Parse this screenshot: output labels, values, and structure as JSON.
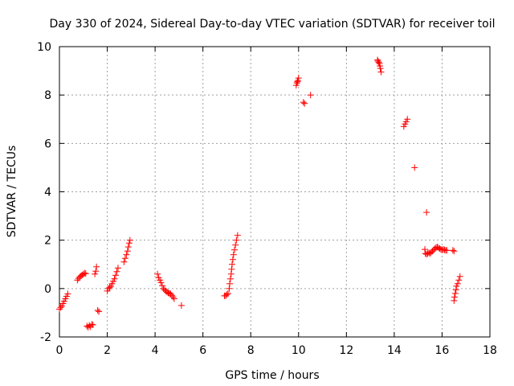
{
  "chart_data": {
    "type": "scatter",
    "title": "Day 330 of 2024, Sidereal Day-to-day VTEC variation (SDTVAR) for receiver toil",
    "xlabel": "GPS time / hours",
    "ylabel": "SDTVAR / TECUs",
    "xlim": [
      0,
      18
    ],
    "ylim": [
      -2,
      10
    ],
    "xticks": [
      0,
      2,
      4,
      6,
      8,
      10,
      12,
      14,
      16,
      18
    ],
    "yticks": [
      -2,
      0,
      2,
      4,
      6,
      8,
      10
    ],
    "xtick_labels": [
      "0",
      "2",
      "4",
      "6",
      "8",
      "10",
      "12",
      "14",
      "16",
      "18"
    ],
    "ytick_labels": [
      "-2",
      "0",
      "2",
      "4",
      "6",
      "8",
      "10"
    ],
    "grid": true,
    "marker": "+",
    "series": [
      {
        "name": "SDTVAR",
        "color": "#ff0000",
        "points": [
          [
            0.0,
            -0.85
          ],
          [
            0.05,
            -0.78
          ],
          [
            0.1,
            -0.72
          ],
          [
            0.15,
            -0.62
          ],
          [
            0.2,
            -0.52
          ],
          [
            0.25,
            -0.42
          ],
          [
            0.3,
            -0.32
          ],
          [
            0.35,
            -0.22
          ],
          [
            0.75,
            0.35
          ],
          [
            0.8,
            0.42
          ],
          [
            0.85,
            0.48
          ],
          [
            0.9,
            0.52
          ],
          [
            0.95,
            0.56
          ],
          [
            1.0,
            0.6
          ],
          [
            1.05,
            0.64
          ],
          [
            1.1,
            0.62
          ],
          [
            1.15,
            -1.55
          ],
          [
            1.2,
            -1.6
          ],
          [
            1.25,
            -1.52
          ],
          [
            1.3,
            -1.58
          ],
          [
            1.35,
            -1.48
          ],
          [
            1.4,
            -1.5
          ],
          [
            1.48,
            0.6
          ],
          [
            1.52,
            0.72
          ],
          [
            1.55,
            0.9
          ],
          [
            1.6,
            -0.9
          ],
          [
            1.65,
            -0.95
          ],
          [
            2.0,
            -0.1
          ],
          [
            2.05,
            0.0
          ],
          [
            2.1,
            0.05
          ],
          [
            2.15,
            0.1
          ],
          [
            2.2,
            0.2
          ],
          [
            2.25,
            0.3
          ],
          [
            2.3,
            0.4
          ],
          [
            2.35,
            0.55
          ],
          [
            2.4,
            0.7
          ],
          [
            2.45,
            0.85
          ],
          [
            2.7,
            1.1
          ],
          [
            2.75,
            1.25
          ],
          [
            2.8,
            1.4
          ],
          [
            2.85,
            1.55
          ],
          [
            2.88,
            1.72
          ],
          [
            2.92,
            1.88
          ],
          [
            2.95,
            2.0
          ],
          [
            4.1,
            0.6
          ],
          [
            4.15,
            0.45
          ],
          [
            4.2,
            0.35
          ],
          [
            4.25,
            0.25
          ],
          [
            4.3,
            0.12
          ],
          [
            4.35,
            0.0
          ],
          [
            4.4,
            -0.05
          ],
          [
            4.45,
            -0.1
          ],
          [
            4.5,
            -0.15
          ],
          [
            4.55,
            -0.18
          ],
          [
            4.6,
            -0.2
          ],
          [
            4.65,
            -0.22
          ],
          [
            4.7,
            -0.28
          ],
          [
            4.75,
            -0.35
          ],
          [
            4.8,
            -0.42
          ],
          [
            5.1,
            -0.7
          ],
          [
            6.9,
            -0.3
          ],
          [
            6.95,
            -0.3
          ],
          [
            7.0,
            -0.25
          ],
          [
            7.05,
            -0.2
          ],
          [
            7.1,
            0.0
          ],
          [
            7.12,
            0.2
          ],
          [
            7.15,
            0.4
          ],
          [
            7.18,
            0.6
          ],
          [
            7.2,
            0.8
          ],
          [
            7.22,
            1.0
          ],
          [
            7.25,
            1.2
          ],
          [
            7.28,
            1.4
          ],
          [
            7.32,
            1.6
          ],
          [
            7.36,
            1.8
          ],
          [
            7.4,
            2.0
          ],
          [
            7.45,
            2.2
          ],
          [
            9.9,
            8.4
          ],
          [
            9.93,
            8.5
          ],
          [
            9.95,
            8.55
          ],
          [
            9.97,
            8.6
          ],
          [
            10.0,
            8.7
          ],
          [
            10.2,
            7.7
          ],
          [
            10.25,
            7.65
          ],
          [
            10.5,
            8.0
          ],
          [
            13.3,
            9.45
          ],
          [
            13.32,
            9.4
          ],
          [
            13.35,
            9.35
          ],
          [
            13.38,
            9.3
          ],
          [
            13.4,
            9.2
          ],
          [
            13.42,
            9.1
          ],
          [
            13.45,
            8.95
          ],
          [
            14.4,
            6.7
          ],
          [
            14.45,
            6.8
          ],
          [
            14.5,
            6.9
          ],
          [
            14.55,
            7.0
          ],
          [
            14.85,
            5.0
          ],
          [
            15.35,
            3.15
          ],
          [
            15.28,
            1.62
          ],
          [
            15.3,
            1.45
          ],
          [
            15.35,
            1.42
          ],
          [
            15.4,
            1.45
          ],
          [
            15.45,
            1.48
          ],
          [
            15.5,
            1.45
          ],
          [
            15.55,
            1.5
          ],
          [
            15.6,
            1.55
          ],
          [
            15.65,
            1.6
          ],
          [
            15.7,
            1.65
          ],
          [
            15.75,
            1.7
          ],
          [
            15.8,
            1.72
          ],
          [
            15.85,
            1.68
          ],
          [
            15.9,
            1.65
          ],
          [
            15.95,
            1.62
          ],
          [
            16.0,
            1.6
          ],
          [
            16.05,
            1.62
          ],
          [
            16.1,
            1.6
          ],
          [
            16.15,
            1.58
          ],
          [
            16.2,
            1.58
          ],
          [
            16.45,
            1.58
          ],
          [
            16.5,
            1.55
          ],
          [
            16.5,
            -0.5
          ],
          [
            16.52,
            -0.35
          ],
          [
            16.55,
            -0.2
          ],
          [
            16.58,
            -0.05
          ],
          [
            16.6,
            0.1
          ],
          [
            16.65,
            0.2
          ],
          [
            16.7,
            0.35
          ],
          [
            16.75,
            0.5
          ]
        ]
      }
    ]
  }
}
